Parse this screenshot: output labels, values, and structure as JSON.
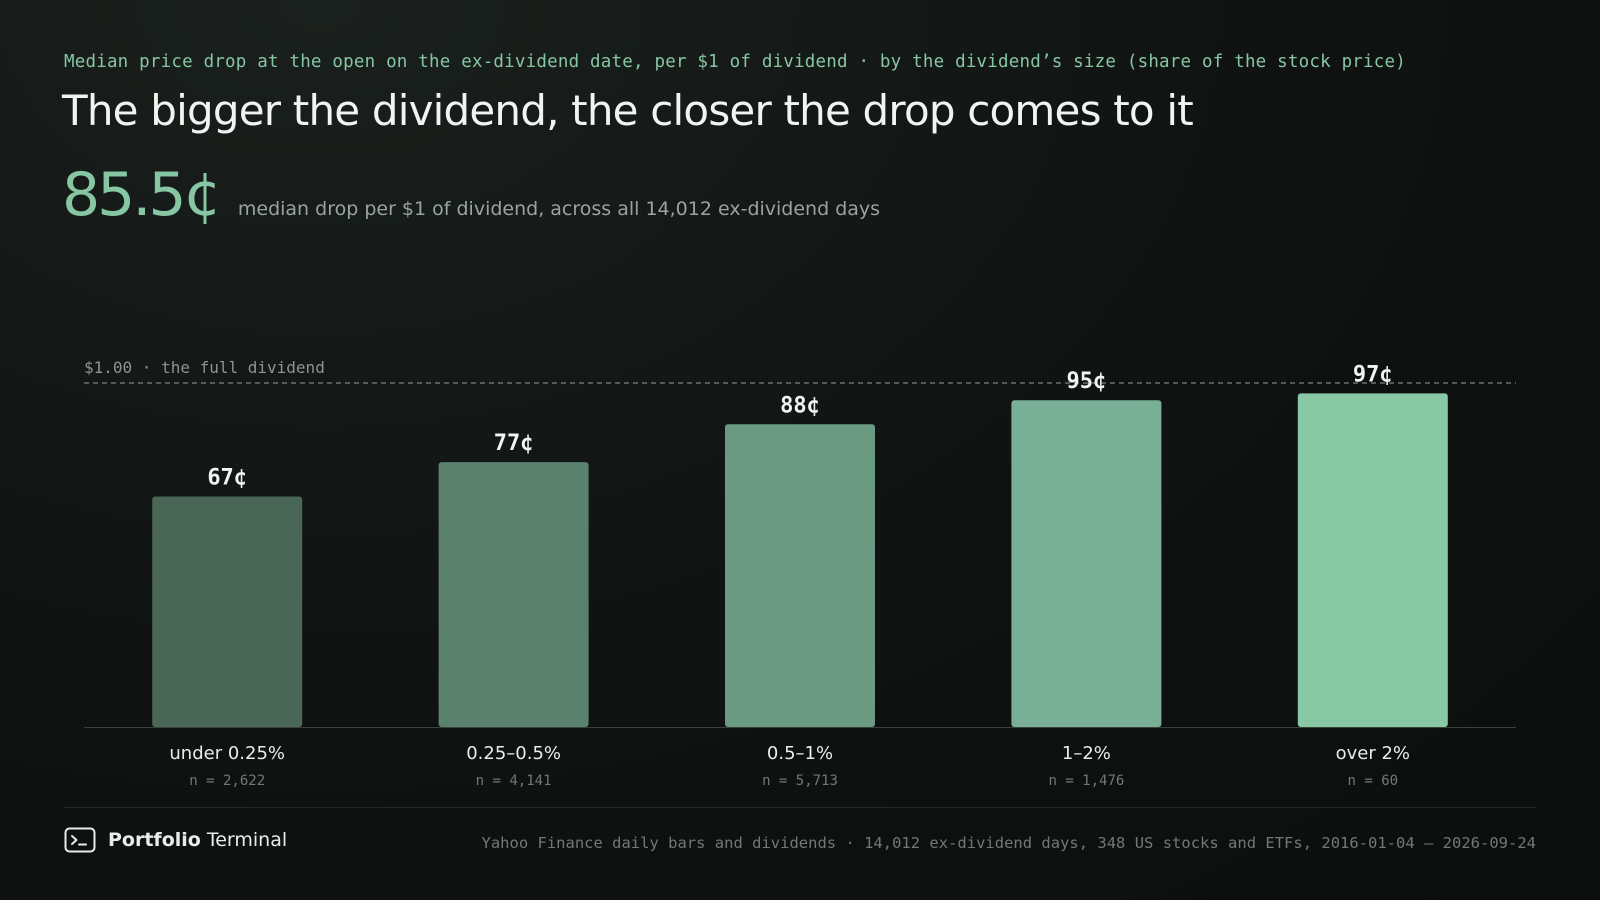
{
  "header": {
    "kicker": "Median price drop at the open on the ex-dividend date, per $1 of dividend · by the dividend’s size (share of the stock price)",
    "title": "The bigger the dividend, the closer the drop comes to it"
  },
  "stat": {
    "value": "85.5¢",
    "note": "median drop per $1 of dividend, across all 14,012 ex-dividend days"
  },
  "chart_data": {
    "type": "bar",
    "categories": [
      "under 0.25%",
      "0.25–0.5%",
      "0.5–1%",
      "1–2%",
      "over 2%"
    ],
    "values": [
      67,
      77,
      88,
      95,
      97
    ],
    "value_labels": [
      "67¢",
      "77¢",
      "88¢",
      "95¢",
      "97¢"
    ],
    "counts": [
      "n = 2,622",
      "n = 4,141",
      "n = 5,713",
      "n = 1,476",
      "n = 60"
    ],
    "unit": "¢",
    "ylim": [
      0,
      100
    ],
    "reference_line": {
      "value": 100,
      "label": "$1.00 · the full dividend"
    },
    "bar_colors": [
      "#4a6657",
      "#5a806e",
      "#6a9a82",
      "#79af96",
      "#88c8a4"
    ],
    "grid": false
  },
  "footer": {
    "brand_strong": "Portfolio",
    "brand_light": "Terminal",
    "source": "Yahoo Finance daily bars and dividends · 14,012 ex-dividend days, 348 US stocks and ETFs, 2016-01-04 – 2026-09-24"
  },
  "colors": {
    "accent": "#86c6a3",
    "background": "#0f1211"
  }
}
